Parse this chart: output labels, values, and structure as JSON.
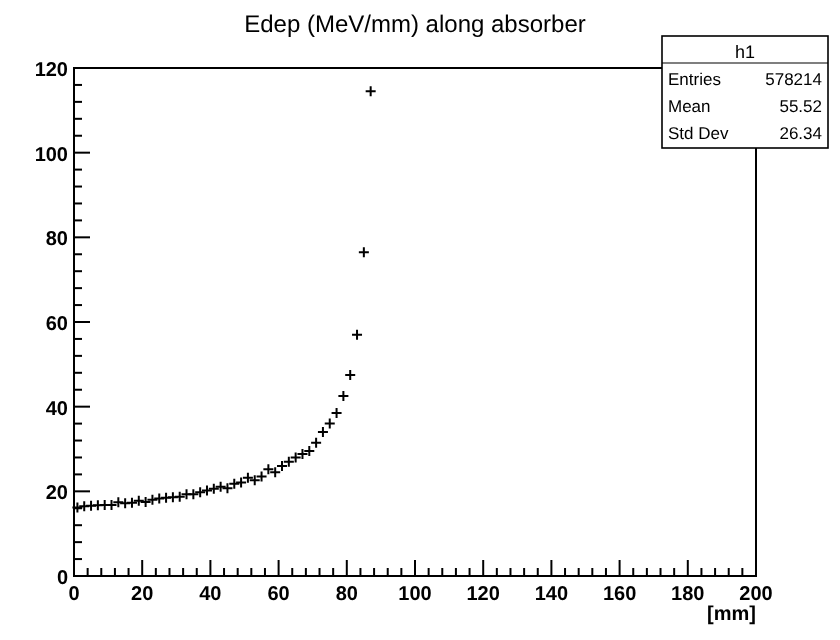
{
  "chart_data": {
    "type": "scatter",
    "title": "Edep (MeV/mm) along absorber",
    "xlabel": "[mm]",
    "x": [
      1,
      3,
      5,
      7,
      9,
      11,
      13,
      15,
      17,
      19,
      21,
      23,
      25,
      27,
      29,
      31,
      33,
      35,
      37,
      39,
      41,
      43,
      45,
      47,
      49,
      51,
      53,
      55,
      57,
      59,
      61,
      63,
      65,
      67,
      69,
      71,
      73,
      75,
      77,
      79,
      81,
      83,
      85,
      87
    ],
    "values": [
      16.2,
      16.5,
      16.6,
      16.7,
      16.8,
      16.8,
      17.4,
      17.2,
      17.3,
      17.8,
      17.5,
      18.0,
      18.3,
      18.5,
      18.6,
      18.7,
      19.3,
      19.3,
      19.8,
      20.2,
      20.6,
      21.1,
      20.7,
      21.8,
      22.1,
      23.2,
      22.6,
      23.5,
      25.2,
      24.5,
      26.0,
      27.0,
      28.0,
      28.8,
      29.5,
      31.5,
      34.0,
      36.0,
      38.5,
      42.5,
      47.5,
      57.0,
      76.5,
      114.5
    ],
    "color": "#000000",
    "marker": "cross",
    "xlim": [
      0,
      200
    ],
    "xticks": [
      0,
      20,
      40,
      60,
      80,
      100,
      120,
      140,
      160,
      180,
      200
    ],
    "ylim": [
      0,
      120
    ],
    "yticks": [
      0,
      20,
      40,
      60,
      80,
      100,
      120
    ],
    "grid": false,
    "annotations": [
      "h1",
      "Entries",
      "578214",
      "Mean",
      "55.52",
      "Std Dev",
      "26.34"
    ]
  }
}
